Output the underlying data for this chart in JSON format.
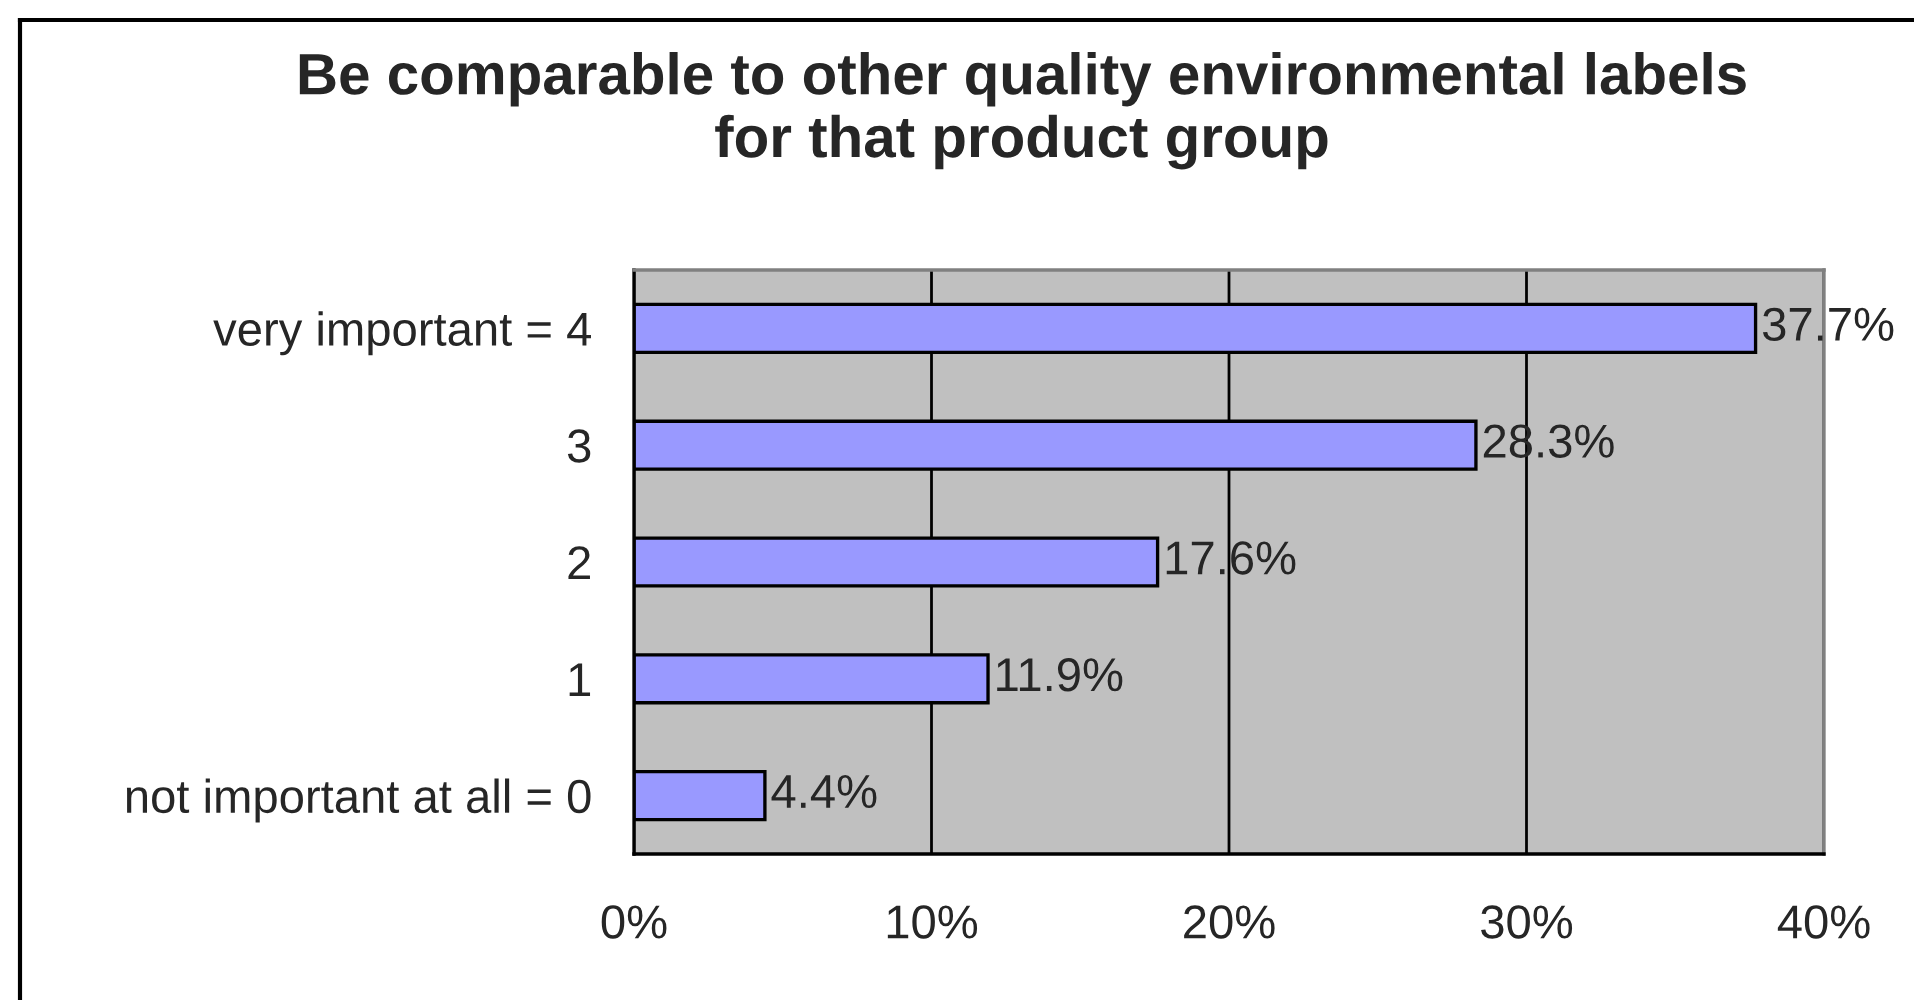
{
  "chart_data": {
    "type": "bar",
    "orientation": "horizontal",
    "title": "Be comparable to other quality environmental labels\nfor that product group",
    "categories": [
      "very important = 4",
      "3",
      "2",
      "1",
      "not important at all = 0"
    ],
    "values": [
      37.7,
      28.3,
      17.6,
      11.9,
      4.4
    ],
    "color": "#9999ff",
    "value_labels": [
      "37.7%",
      "28.3%",
      "17.6%",
      "11.9%",
      "4.4%"
    ],
    "xlim": [
      0,
      40
    ],
    "xticks": [
      {
        "value": 0,
        "label": "0%"
      },
      {
        "value": 10,
        "label": "10%"
      },
      {
        "value": 20,
        "label": "20%"
      },
      {
        "value": 30,
        "label": "30%"
      },
      {
        "value": 40,
        "label": "40%"
      }
    ],
    "grid": "x"
  }
}
